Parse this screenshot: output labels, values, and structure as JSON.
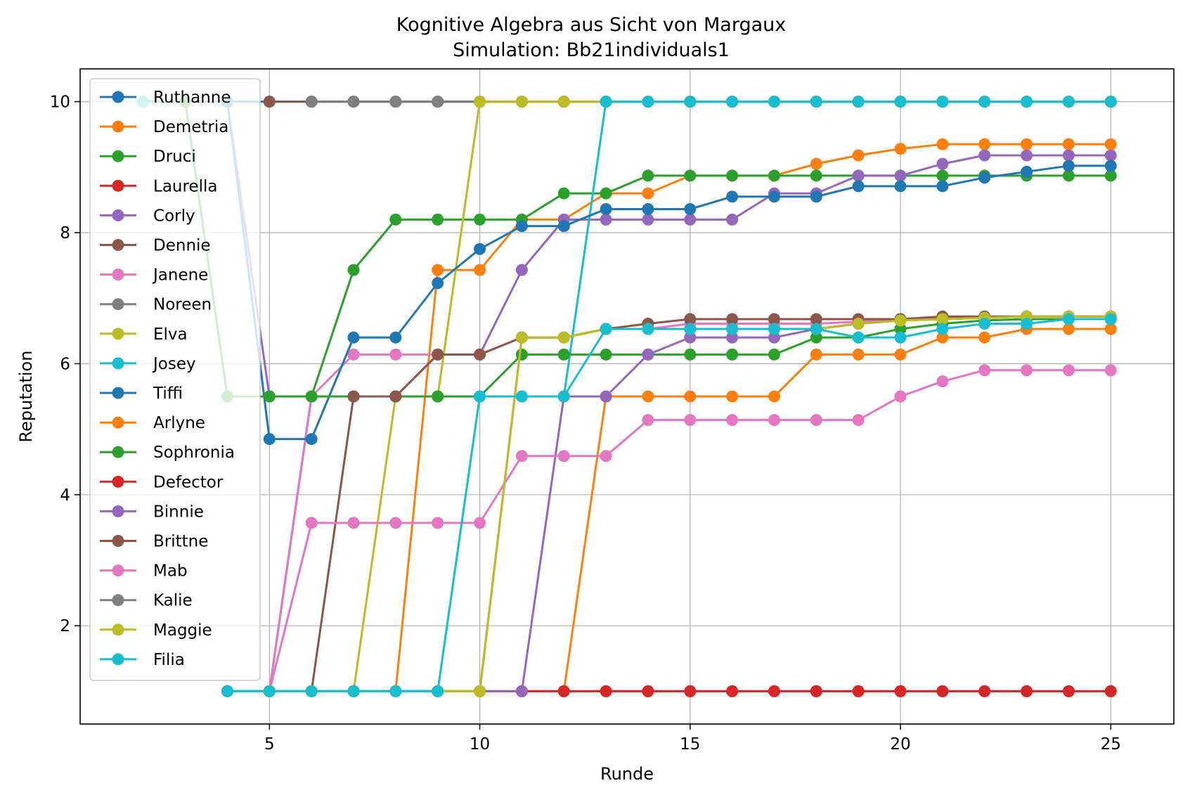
{
  "chart_data": {
    "type": "line",
    "title": "Kognitive Algebra aus Sicht von Margaux",
    "subtitle": "Simulation: Bb21individuals1",
    "xlabel": "Runde",
    "ylabel": "Reputation",
    "xlim": [
      0.5,
      26.5
    ],
    "ylim": [
      0.5,
      10.5
    ],
    "xticks": [
      5,
      10,
      15,
      20,
      25
    ],
    "yticks": [
      2,
      4,
      6,
      8,
      10
    ],
    "xtick_labels": [
      "5",
      "10",
      "15",
      "20",
      "25"
    ],
    "ytick_labels": [
      "2",
      "4",
      "6",
      "8",
      "10"
    ],
    "grid": true,
    "legend_position": "top-left",
    "series": [
      {
        "name": "Ruthanne",
        "color": "#1f77b4",
        "x": [
          2,
          3,
          4,
          5,
          6,
          7,
          8,
          9,
          10,
          11,
          12,
          13,
          14,
          15,
          16,
          17,
          18,
          19,
          20,
          21,
          22,
          23,
          24,
          25
        ],
        "values": [
          10,
          10,
          10,
          10,
          10,
          10,
          10,
          10,
          10,
          10,
          10,
          10,
          10,
          10,
          10,
          10,
          10,
          10,
          10,
          10,
          10,
          10,
          10,
          10
        ]
      },
      {
        "name": "Demetria",
        "color": "#ff7f0e",
        "x": [
          4,
          5,
          6,
          7,
          8,
          9,
          10,
          11,
          12,
          13,
          14,
          15,
          16,
          17,
          18,
          19,
          20,
          21,
          22,
          23,
          24,
          25
        ],
        "values": [
          1,
          1,
          1,
          1,
          1,
          7.43,
          7.43,
          8.2,
          8.2,
          8.6,
          8.6,
          8.87,
          8.87,
          8.87,
          9.05,
          9.18,
          9.28,
          9.35,
          9.35,
          9.35,
          9.35,
          9.35
        ]
      },
      {
        "name": "Druci",
        "color": "#2ca02c",
        "x": [
          4,
          5,
          6,
          7,
          8,
          9,
          10,
          11,
          12,
          13,
          14,
          15,
          16,
          17,
          18,
          19,
          20,
          21,
          22,
          23,
          24,
          25
        ],
        "values": [
          1,
          1,
          5.5,
          7.43,
          8.2,
          8.2,
          8.2,
          8.2,
          8.6,
          8.6,
          8.87,
          8.87,
          8.87,
          8.87,
          8.87,
          8.87,
          8.87,
          8.87,
          8.87,
          8.87,
          8.87,
          8.87
        ]
      },
      {
        "name": "Laurella",
        "color": "#d62728",
        "x": [
          4,
          5,
          6,
          7,
          8,
          9,
          10,
          11,
          12,
          13,
          14,
          15,
          16,
          17,
          18,
          19,
          20,
          21,
          22,
          23,
          24,
          25
        ],
        "values": [
          1,
          1,
          1,
          1,
          1,
          1,
          1,
          1,
          1,
          1,
          1,
          1,
          1,
          1,
          1,
          1,
          1,
          1,
          1,
          1,
          1,
          1
        ]
      },
      {
        "name": "Corly",
        "color": "#9467bd",
        "x": [
          4,
          5,
          6,
          7,
          8,
          9,
          10,
          11,
          12,
          13,
          14,
          15,
          16,
          17,
          18,
          19,
          20,
          21,
          22,
          23,
          24,
          25
        ],
        "values": [
          10,
          5.5,
          5.5,
          5.5,
          5.5,
          6.14,
          6.14,
          7.43,
          8.2,
          8.2,
          8.2,
          8.2,
          8.2,
          8.6,
          8.6,
          8.87,
          8.87,
          9.05,
          9.18,
          9.18,
          9.18,
          9.18
        ]
      },
      {
        "name": "Dennie",
        "color": "#8c564b",
        "x": [
          5,
          6,
          7,
          8,
          9,
          10,
          11,
          12,
          13,
          14,
          15,
          16,
          17,
          18,
          19,
          20,
          21,
          22,
          23,
          24,
          25
        ],
        "values": [
          10,
          10,
          10,
          10,
          10,
          10,
          10,
          10,
          10,
          10,
          10,
          10,
          10,
          10,
          10,
          10,
          10,
          10,
          10,
          10,
          10
        ]
      },
      {
        "name": "Janene",
        "color": "#e377c2",
        "x": [
          4,
          5,
          6,
          7,
          8,
          9,
          10,
          11,
          12,
          13,
          14,
          15,
          16,
          17,
          18,
          19,
          20,
          21,
          22,
          23,
          24,
          25
        ],
        "values": [
          1,
          1,
          5.5,
          6.14,
          6.14,
          6.14,
          6.14,
          6.4,
          6.4,
          6.53,
          6.53,
          6.61,
          6.61,
          6.61,
          6.61,
          6.64,
          6.68,
          6.7,
          6.7,
          6.72,
          6.72,
          6.72
        ]
      },
      {
        "name": "Noreen",
        "color": "#7f7f7f",
        "x": [
          6,
          7,
          8,
          9,
          10,
          11,
          12,
          13,
          14,
          15,
          16,
          17,
          18,
          19,
          20,
          21,
          22,
          23,
          24,
          25
        ],
        "values": [
          10,
          10,
          10,
          10,
          10,
          10,
          10,
          10,
          10,
          10,
          10,
          10,
          10,
          10,
          10,
          10,
          10,
          10,
          10,
          10
        ]
      },
      {
        "name": "Elva",
        "color": "#bcbd22",
        "x": [
          4,
          5,
          6,
          7,
          8,
          9,
          10,
          11,
          12,
          13,
          14,
          15,
          16,
          17,
          18,
          19,
          20,
          21,
          22,
          23,
          24,
          25
        ],
        "values": [
          1,
          1,
          1,
          1,
          5.5,
          5.5,
          10,
          10,
          10,
          10,
          10,
          10,
          10,
          10,
          10,
          10,
          10,
          10,
          10,
          10,
          10,
          10
        ]
      },
      {
        "name": "Josey",
        "color": "#17becf",
        "x": [
          2,
          3,
          4,
          5,
          6,
          7,
          8,
          9,
          10,
          11,
          12,
          13,
          14,
          15,
          16,
          17,
          18,
          19,
          20,
          21,
          22,
          23,
          24,
          25
        ],
        "values": [
          10,
          10,
          5.5,
          5.5,
          5.5,
          5.5,
          5.5,
          5.5,
          5.5,
          5.5,
          5.5,
          10,
          10,
          10,
          10,
          10,
          10,
          10,
          10,
          10,
          10,
          10,
          10,
          10
        ]
      },
      {
        "name": "Tiffi",
        "color": "#1f77b4",
        "x": [
          4,
          5,
          6,
          7,
          8,
          9,
          10,
          11,
          12,
          13,
          14,
          15,
          16,
          17,
          18,
          19,
          20,
          21,
          22,
          23,
          24,
          25
        ],
        "values": [
          10,
          4.85,
          4.85,
          6.4,
          6.4,
          7.23,
          7.75,
          8.1,
          8.1,
          8.36,
          8.36,
          8.36,
          8.55,
          8.55,
          8.55,
          8.71,
          8.71,
          8.71,
          8.84,
          8.93,
          9.02,
          9.02
        ]
      },
      {
        "name": "Arlyne",
        "color": "#ff7f0e",
        "x": [
          4,
          5,
          6,
          7,
          8,
          9,
          10,
          11,
          12,
          13,
          14,
          15,
          16,
          17,
          18,
          19,
          20,
          21,
          22,
          23,
          24,
          25
        ],
        "values": [
          1,
          1,
          1,
          1,
          1,
          1,
          1,
          1,
          1,
          5.5,
          5.5,
          5.5,
          5.5,
          5.5,
          6.14,
          6.14,
          6.14,
          6.4,
          6.4,
          6.53,
          6.53,
          6.53
        ]
      },
      {
        "name": "Sophronia",
        "color": "#2ca02c",
        "x": [
          3,
          4,
          5,
          6,
          7,
          8,
          9,
          10,
          11,
          12,
          13,
          14,
          15,
          16,
          17,
          18,
          19,
          20,
          21,
          22,
          23,
          24,
          25
        ],
        "values": [
          10,
          5.5,
          5.5,
          5.5,
          5.5,
          5.5,
          5.5,
          5.5,
          6.14,
          6.14,
          6.14,
          6.14,
          6.14,
          6.14,
          6.14,
          6.4,
          6.4,
          6.53,
          6.61,
          6.66,
          6.68,
          6.68,
          6.68
        ]
      },
      {
        "name": "Defector",
        "color": "#d62728",
        "x": [
          4,
          5,
          6,
          7,
          8,
          9,
          10,
          11,
          12,
          13,
          14,
          15,
          16,
          17,
          18,
          19,
          20,
          21,
          22,
          23,
          24,
          25
        ],
        "values": [
          1,
          1,
          1,
          1,
          1,
          1,
          1,
          1,
          1,
          1,
          1,
          1,
          1,
          1,
          1,
          1,
          1,
          1,
          1,
          1,
          1,
          1
        ]
      },
      {
        "name": "Binnie",
        "color": "#9467bd",
        "x": [
          4,
          5,
          6,
          7,
          8,
          9,
          10,
          11,
          12,
          13,
          14,
          15,
          16,
          17,
          18,
          19,
          20,
          21,
          22,
          23,
          24,
          25
        ],
        "values": [
          1,
          1,
          1,
          1,
          1,
          1,
          1,
          1,
          5.5,
          5.5,
          6.14,
          6.4,
          6.4,
          6.4,
          6.53,
          6.61,
          6.66,
          6.68,
          6.7,
          6.72,
          6.72,
          6.72
        ]
      },
      {
        "name": "Brittne",
        "color": "#8c564b",
        "x": [
          4,
          5,
          6,
          7,
          8,
          9,
          10,
          11,
          12,
          13,
          14,
          15,
          16,
          17,
          18,
          19,
          20,
          21,
          22,
          23,
          24,
          25
        ],
        "values": [
          1,
          1,
          1,
          5.5,
          5.5,
          6.14,
          6.14,
          6.4,
          6.4,
          6.53,
          6.61,
          6.68,
          6.68,
          6.68,
          6.68,
          6.68,
          6.68,
          6.72,
          6.72,
          6.72,
          6.72,
          6.72
        ]
      },
      {
        "name": "Mab",
        "color": "#e377c2",
        "x": [
          4,
          5,
          6,
          7,
          8,
          9,
          10,
          11,
          12,
          13,
          14,
          15,
          16,
          17,
          18,
          19,
          20,
          21,
          22,
          23,
          24,
          25
        ],
        "values": [
          1,
          1,
          3.57,
          3.57,
          3.57,
          3.57,
          3.57,
          4.59,
          4.59,
          4.59,
          5.14,
          5.14,
          5.14,
          5.14,
          5.14,
          5.14,
          5.5,
          5.73,
          5.9,
          5.9,
          5.9,
          5.9
        ]
      },
      {
        "name": "Kalie",
        "color": "#7f7f7f",
        "x": [
          4,
          5,
          6,
          7,
          8,
          9,
          10,
          11,
          12,
          13,
          14,
          15,
          16,
          17,
          18,
          19,
          20,
          21,
          22,
          23,
          24,
          25
        ],
        "values": [
          1,
          1,
          1,
          1,
          1,
          1,
          1,
          6.4,
          6.4,
          6.53,
          6.53,
          6.53,
          6.53,
          6.53,
          6.53,
          6.61,
          6.66,
          6.68,
          6.7,
          6.72,
          6.72,
          6.72
        ]
      },
      {
        "name": "Maggie",
        "color": "#bcbd22",
        "x": [
          4,
          5,
          6,
          7,
          8,
          9,
          10,
          11,
          12,
          13,
          14,
          15,
          16,
          17,
          18,
          19,
          20,
          21,
          22,
          23,
          24,
          25
        ],
        "values": [
          1,
          1,
          1,
          1,
          1,
          1,
          1,
          6.4,
          6.4,
          6.53,
          6.53,
          6.53,
          6.53,
          6.53,
          6.53,
          6.61,
          6.66,
          6.68,
          6.7,
          6.72,
          6.72,
          6.72
        ]
      },
      {
        "name": "Filia",
        "color": "#17becf",
        "x": [
          4,
          5,
          6,
          7,
          8,
          9,
          10,
          11,
          12,
          13,
          14,
          15,
          16,
          17,
          18,
          19,
          20,
          21,
          22,
          23,
          24,
          25
        ],
        "values": [
          1,
          1,
          1,
          1,
          1,
          1,
          5.5,
          5.5,
          5.5,
          6.53,
          6.53,
          6.53,
          6.53,
          6.53,
          6.53,
          6.4,
          6.4,
          6.53,
          6.61,
          6.61,
          6.68,
          6.68
        ]
      }
    ]
  }
}
